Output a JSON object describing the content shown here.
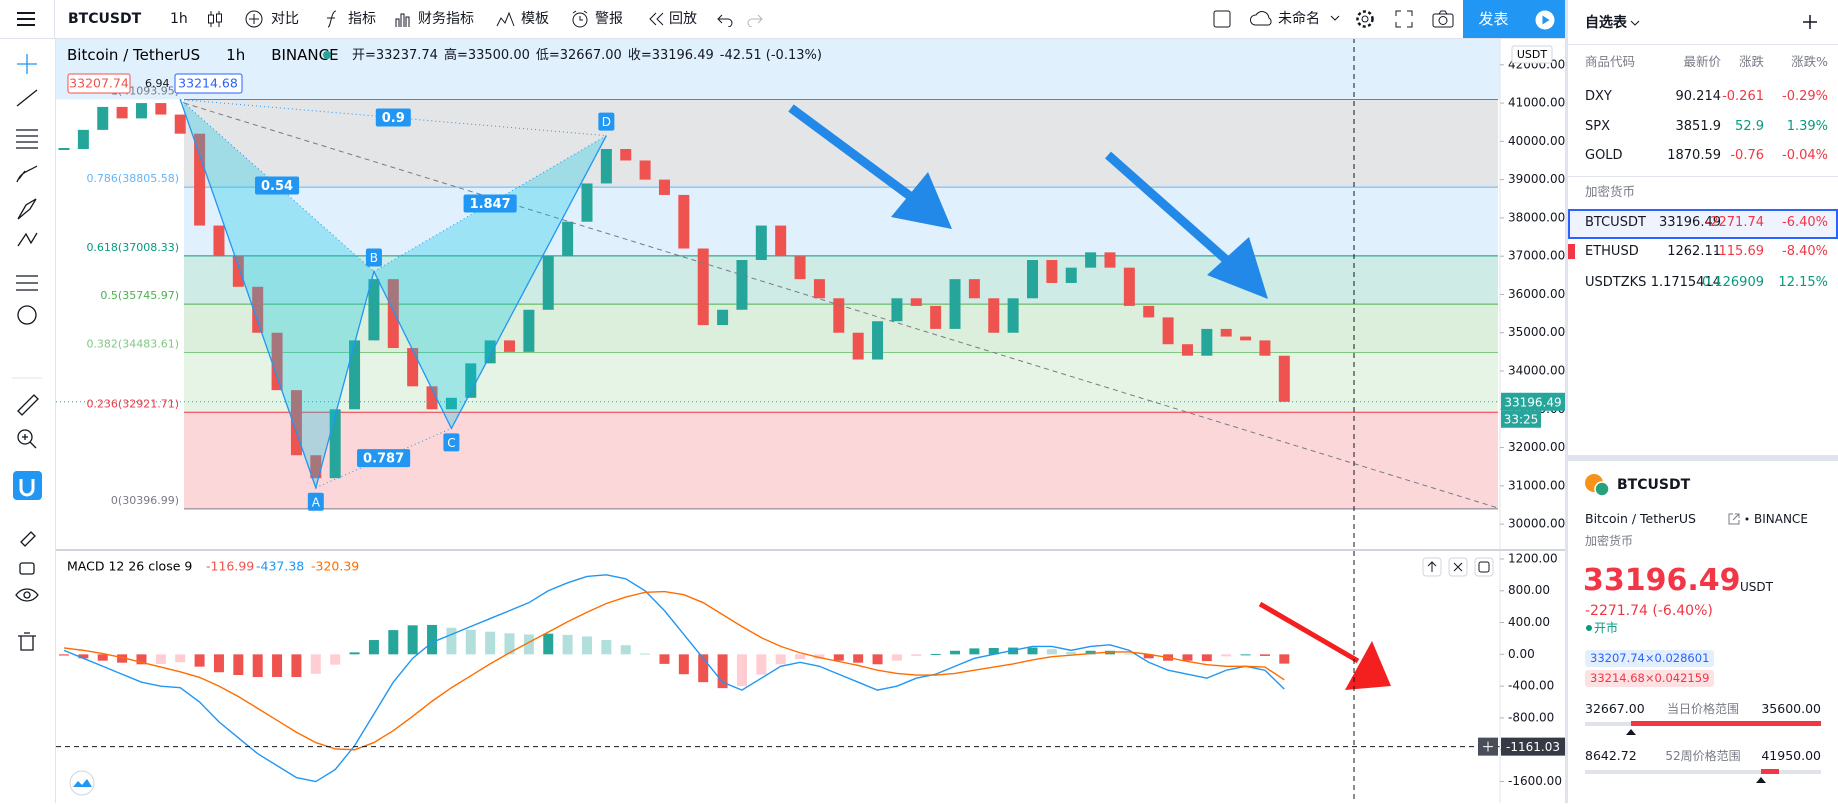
{
  "toolbar": {
    "symbol": "BTCUSDT",
    "interval": "1h",
    "items": [
      "对比",
      "指标",
      "财务指标",
      "模板",
      "警报",
      "回放"
    ],
    "layout_name": "未命名",
    "publish": "发表"
  },
  "chart_data": [
    {
      "type": "candlestick",
      "symbol_name": "Bitcoin / TetherUS",
      "interval": "1h",
      "exchange": "BINANCE",
      "legend": [
        "开=33237.74",
        "高=33500.00",
        "低=32667.00",
        "收=33196.49",
        "-42.51 (-0.13%)"
      ],
      "bid": "33207.74",
      "spread": "6.94",
      "ask": "33214.68",
      "currency": "USDT",
      "ylim": [
        29350,
        42700
      ],
      "yticks": [
        {
          "value": 30000,
          "label": "30000.00"
        },
        {
          "value": 31000,
          "label": "31000.00"
        },
        {
          "value": 32000,
          "label": "32000.00"
        },
        {
          "value": 33000,
          "label": "33000.00"
        },
        {
          "value": 34000,
          "label": "34000.00"
        },
        {
          "value": 35000,
          "label": "35000.00"
        },
        {
          "value": 36000,
          "label": "36000.00"
        },
        {
          "value": 37000,
          "label": "37000.00"
        },
        {
          "value": 38000,
          "label": "38000.00"
        },
        {
          "value": 39000,
          "label": "39000.00"
        },
        {
          "value": 40000,
          "label": "40000.00"
        },
        {
          "value": 41000,
          "label": "41000.00"
        },
        {
          "value": 42000,
          "label": "42000.00"
        }
      ],
      "close": [
        39800,
        40300,
        40900,
        40600,
        41000,
        40700,
        40200,
        37800,
        37000,
        36200,
        35000,
        33500,
        31800,
        31200,
        33000,
        34800,
        36400,
        34600,
        33600,
        33000,
        33300,
        34200,
        34800,
        34500,
        35600,
        37000,
        37900,
        38900,
        39800,
        39500,
        39000,
        38600,
        37200,
        35200,
        35600,
        36900,
        37800,
        37000,
        36400,
        35900,
        35000,
        34300,
        35300,
        35900,
        35700,
        35100,
        36400,
        35900,
        35000,
        35900,
        36900,
        36300,
        36700,
        37100,
        36700,
        35700,
        35400,
        34700,
        34400,
        35100,
        34900,
        34800,
        34400,
        33196.49
      ],
      "up_color": "#26a69a",
      "down_color": "#ef5350",
      "last_price": 33196.49,
      "countdown": "33:25",
      "fib_levels": [
        {
          "price": 41093.95,
          "label": "1(41093.95)",
          "color": "#787b86",
          "fill": "rgba(120,123,134,0.2)"
        },
        {
          "price": 38805.58,
          "label": "0.786(38805.58)",
          "color": "#64b5f6",
          "fill": "rgba(100,181,246,0.2)"
        },
        {
          "price": 37008.33,
          "label": "0.618(37008.33)",
          "color": "#089981",
          "fill": "rgba(8,153,129,0.2)"
        },
        {
          "price": 35745.97,
          "label": "0.5(35745.97)",
          "color": "#4caf50",
          "fill": "rgba(76,175,80,0.2)"
        },
        {
          "price": 34483.61,
          "label": "0.382(34483.61)",
          "color": "#81c784",
          "fill": "rgba(129,199,132,0.2)"
        },
        {
          "price": 32921.71,
          "label": "0.236(32921.71)",
          "color": "#f23645",
          "fill": "rgba(242,54,69,0.2)"
        },
        {
          "price": 30396.99,
          "label": "0(30396.99)",
          "color": "#787b86"
        }
      ],
      "pattern": {
        "points": [
          {
            "x": 6,
            "price": 41094
          },
          {
            "label": "A",
            "x": 13,
            "price": 30950
          },
          {
            "label": "B",
            "x": 16,
            "price": 36600
          },
          {
            "label": "C",
            "x": 20,
            "price": 32500
          },
          {
            "label": "D",
            "x": 28,
            "price": 40150
          }
        ],
        "ratios": [
          0.9,
          0.54,
          1.847,
          0.787
        ]
      }
    },
    {
      "type": "macd",
      "title": "MACD 12 26 close 9",
      "ylim": [
        -1870,
        1300
      ],
      "yticks": [
        {
          "value": 1200,
          "label": "1200.00"
        },
        {
          "value": 800,
          "label": "800.00"
        },
        {
          "value": 400,
          "label": "400.00"
        },
        {
          "value": 0,
          "label": "0.00"
        },
        {
          "value": -400,
          "label": "-400.00"
        },
        {
          "value": -800,
          "label": "-800.00"
        },
        {
          "value": -1200,
          "label": "-1200.00"
        },
        {
          "value": -1600,
          "label": "-1600.00"
        }
      ],
      "hist": [
        -15,
        -50,
        -80,
        -105,
        -125,
        -120,
        -100,
        -155,
        -225,
        -260,
        -285,
        -285,
        -285,
        -245,
        -130,
        25,
        180,
        305,
        365,
        370,
        335,
        310,
        285,
        265,
        250,
        260,
        245,
        225,
        180,
        115,
        10,
        -120,
        -250,
        -350,
        -425,
        -400,
        -255,
        -125,
        -60,
        -55,
        -80,
        -105,
        -125,
        -80,
        -20,
        5,
        45,
        75,
        80,
        85,
        85,
        65,
        30,
        45,
        45,
        10,
        -50,
        -80,
        -80,
        -85,
        -25,
        0,
        -20,
        -116.99
      ],
      "macd": [
        50,
        -50,
        -150,
        -250,
        -350,
        -400,
        -420,
        -600,
        -850,
        -1050,
        -1250,
        -1400,
        -1550,
        -1600,
        -1450,
        -1150,
        -750,
        -350,
        -50,
        150,
        250,
        350,
        450,
        550,
        650,
        800,
        900,
        980,
        1000,
        950,
        800,
        550,
        250,
        -50,
        -350,
        -450,
        -300,
        -150,
        -100,
        -150,
        -250,
        -350,
        -450,
        -400,
        -300,
        -250,
        -150,
        -50,
        0,
        50,
        100,
        100,
        50,
        100,
        120,
        50,
        -100,
        -200,
        -250,
        -300,
        -200,
        -150,
        -200,
        -437.38
      ],
      "signal": [
        80,
        50,
        10,
        -40,
        -100,
        -160,
        -220,
        -290,
        -400,
        -530,
        -680,
        -830,
        -980,
        -1110,
        -1190,
        -1200,
        -1110,
        -960,
        -780,
        -590,
        -420,
        -270,
        -120,
        20,
        150,
        280,
        410,
        530,
        640,
        720,
        780,
        790,
        750,
        650,
        500,
        350,
        210,
        100,
        20,
        -40,
        -90,
        -140,
        -200,
        -240,
        -260,
        -260,
        -240,
        -200,
        -160,
        -120,
        -70,
        -30,
        -10,
        10,
        30,
        30,
        0,
        -40,
        -90,
        -130,
        -150,
        -150,
        -160,
        -320.39
      ],
      "hist_colors": [
        "#26a69a",
        "#b2dfdb",
        "#ef5350",
        "#ffcdd2"
      ],
      "macd_color": "#2196f3",
      "signal_color": "#ff6d00",
      "crosshair": {
        "value": -1161.03,
        "label": "-1161.03"
      }
    }
  ],
  "watchlist": {
    "title": "自选表",
    "columns": [
      "商品代码",
      "最新价",
      "涨跌",
      "涨跌%"
    ],
    "rows": [
      [
        "DXY",
        "90.214",
        "-0.261",
        "-0.29%"
      ],
      [
        "SPX",
        "3851.9",
        "52.9",
        "1.39%"
      ],
      [
        "GOLD",
        "1870.59",
        "-0.76",
        "-0.04%"
      ]
    ],
    "section": "加密货币",
    "crypto_rows": [
      [
        "BTCUSDT",
        "33196.49",
        "-2271.74",
        "-6.40%"
      ],
      [
        "ETHUSD",
        "1262.11",
        "-115.69",
        "-8.40%"
      ],
      [
        "USDTZKS",
        "1.1715414",
        "0.126909",
        "12.15%"
      ]
    ]
  },
  "details": {
    "symbol": "BTCUSDT",
    "name": "Bitcoin / TetherUS",
    "exchange": "BINANCE",
    "category": "加密货币",
    "price": "33196.49",
    "currency": "USDT",
    "change": "-2271.74 (-6.40%)",
    "status": "开市",
    "bid": "33207.74×0.028601",
    "ask": "33214.68×0.042159",
    "day_range": {
      "low": "32667.00",
      "label": "当日价格范围",
      "high": "35600.00"
    },
    "week52_range": {
      "low": "8642.72",
      "label": "52周价格范围",
      "high": "41950.00"
    }
  }
}
